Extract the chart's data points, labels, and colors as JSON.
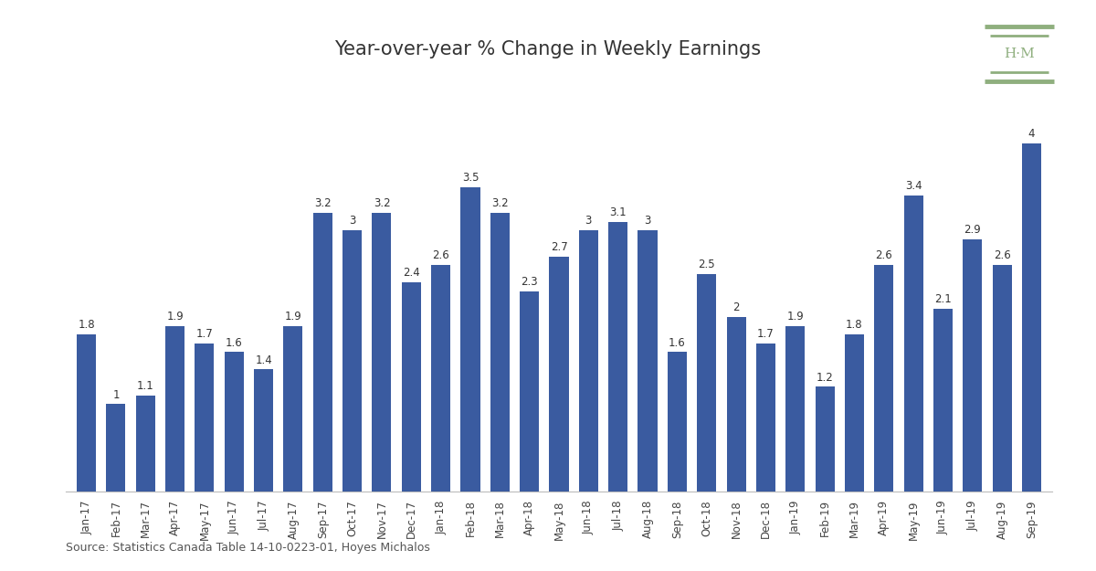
{
  "title": "Year-over-year % Change in Weekly Earnings",
  "categories": [
    "Jan-17",
    "Feb-17",
    "Mar-17",
    "Apr-17",
    "May-17",
    "Jun-17",
    "Jul-17",
    "Aug-17",
    "Sep-17",
    "Oct-17",
    "Nov-17",
    "Dec-17",
    "Jan-18",
    "Feb-18",
    "Mar-18",
    "Apr-18",
    "May-18",
    "Jun-18",
    "Jul-18",
    "Aug-18",
    "Sep-18",
    "Oct-18",
    "Nov-18",
    "Dec-18",
    "Jan-19",
    "Feb-19",
    "Mar-19",
    "Apr-19",
    "May-19",
    "Jun-19",
    "Jul-19",
    "Aug-19",
    "Sep-19"
  ],
  "values": [
    1.8,
    1.0,
    1.1,
    1.9,
    1.7,
    1.6,
    1.4,
    1.9,
    3.2,
    3.0,
    3.2,
    2.4,
    2.6,
    3.5,
    3.2,
    2.3,
    2.7,
    3.0,
    3.1,
    3.0,
    1.6,
    2.5,
    2.0,
    1.7,
    1.9,
    1.2,
    1.8,
    2.6,
    3.4,
    2.1,
    2.9,
    2.6,
    4.0
  ],
  "bar_color": "#3A5BA0",
  "background_color": "#ffffff",
  "source_text": "Source: Statistics Canada Table 14-10-0223-01, Hoyes Michalos",
  "logo_color": "#8faf7e",
  "title_fontsize": 15,
  "label_fontsize": 8.5,
  "source_fontsize": 9,
  "ylim": [
    0,
    4.6
  ]
}
